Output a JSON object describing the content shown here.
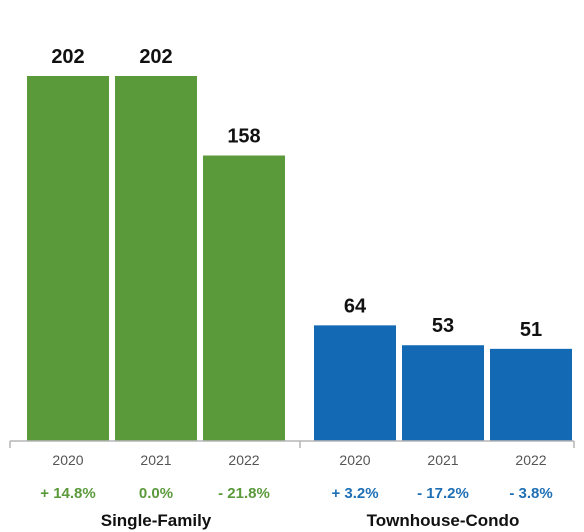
{
  "chart_data": {
    "type": "bar",
    "title": "",
    "xlabel": "",
    "ylabel": "",
    "ylim": [
      0,
      202
    ],
    "grid": false,
    "legend": "none",
    "groups": [
      {
        "name": "Single-Family",
        "color": "#5b9a3b",
        "change_color": "#5b9a3b",
        "bars": [
          {
            "year": "2020",
            "value": 202,
            "change": "+ 14.8%"
          },
          {
            "year": "2021",
            "value": 202,
            "change": "0.0%"
          },
          {
            "year": "2022",
            "value": 158,
            "change": "- 21.8%"
          }
        ]
      },
      {
        "name": "Townhouse-Condo",
        "color": "#1469b4",
        "change_color": "#1f6fb5",
        "bars": [
          {
            "year": "2020",
            "value": 64,
            "change": "+ 3.2%"
          },
          {
            "year": "2021",
            "value": 53,
            "change": "- 17.2%"
          },
          {
            "year": "2022",
            "value": 51,
            "change": "- 3.8%"
          }
        ]
      }
    ]
  }
}
